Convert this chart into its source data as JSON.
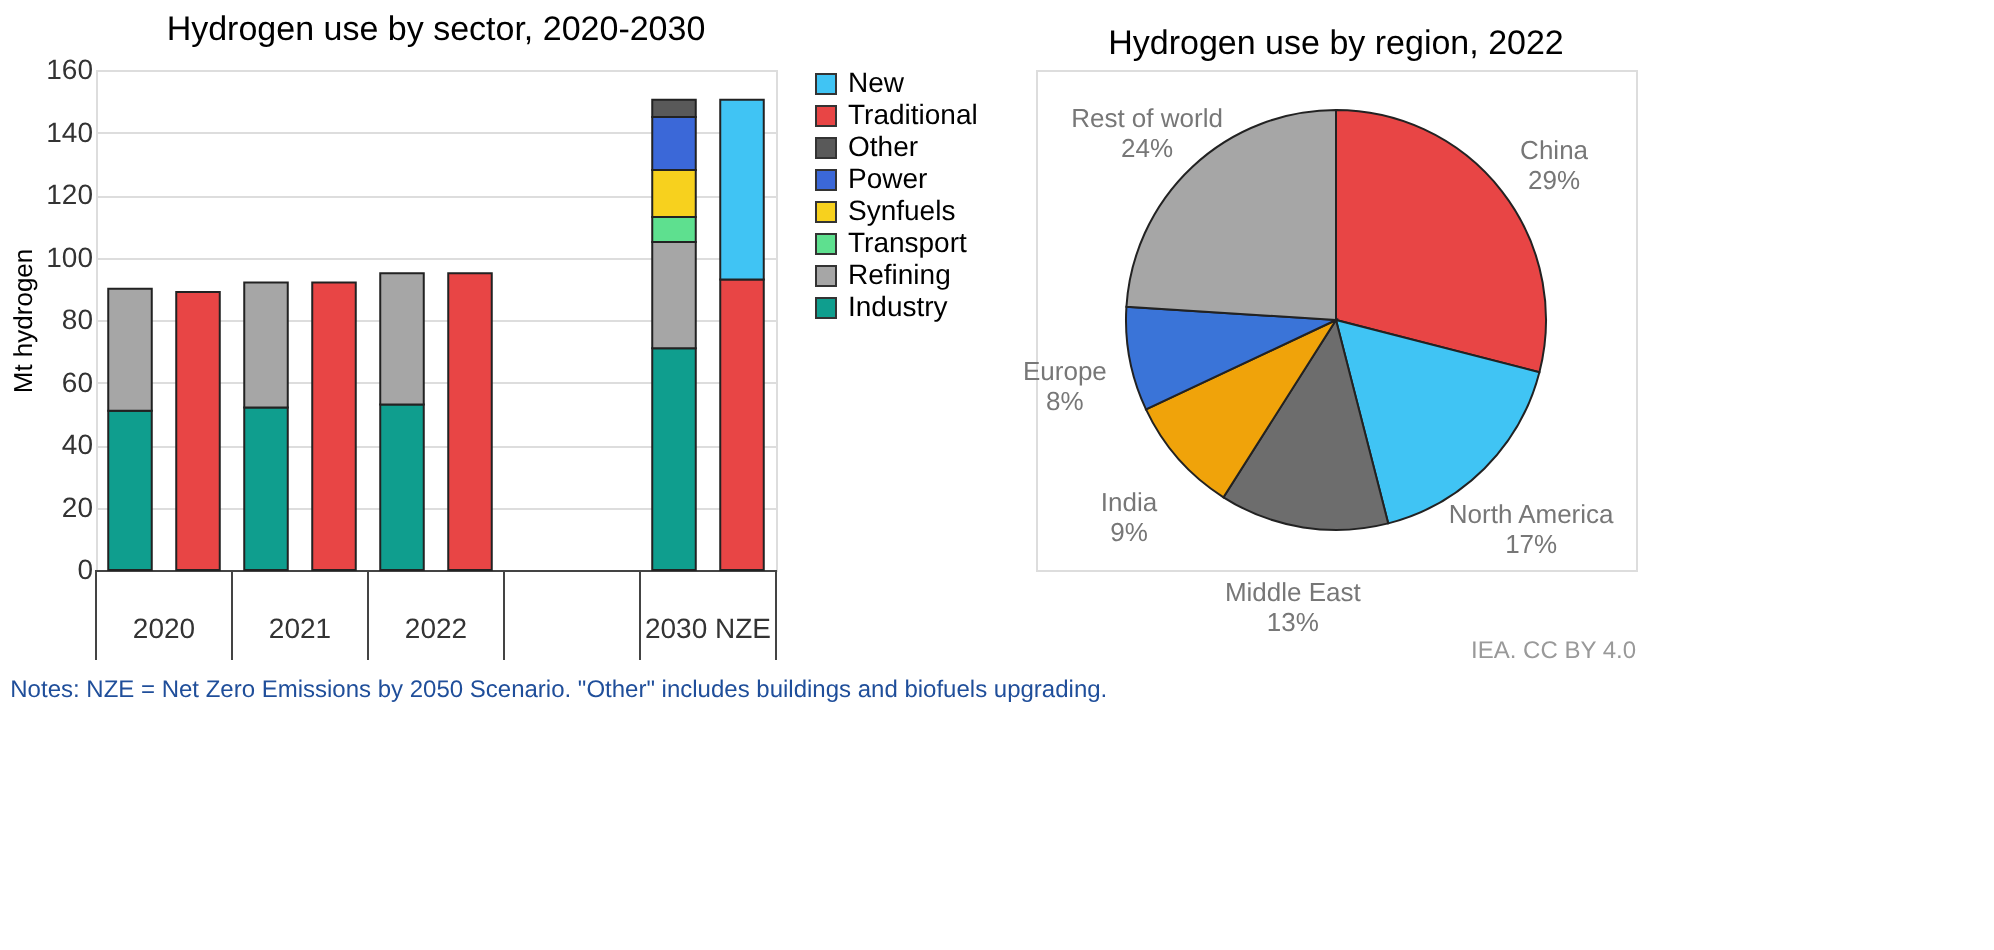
{
  "chart_data": [
    {
      "type": "bar",
      "stacked": true,
      "title": "Hydrogen use by sector, 2020-2030",
      "ylabel": "Mt hydrogen",
      "categories": [
        "2020",
        null,
        "2021",
        null,
        "2022",
        null,
        null,
        null,
        "2030 NZE",
        null
      ],
      "series": [
        {
          "name": "Industry",
          "color": "#0f9e8e",
          "values": [
            51,
            null,
            52,
            null,
            53,
            null,
            null,
            null,
            71,
            null
          ]
        },
        {
          "name": "Refining",
          "color": "#a6a6a6",
          "values": [
            39,
            null,
            40,
            null,
            42,
            null,
            null,
            null,
            34,
            null
          ]
        },
        {
          "name": "Transport",
          "color": "#5ee08f",
          "values": [
            null,
            null,
            null,
            null,
            null,
            null,
            null,
            null,
            8,
            null
          ]
        },
        {
          "name": "Synfuels",
          "color": "#f7d11e",
          "values": [
            null,
            null,
            null,
            null,
            null,
            null,
            null,
            null,
            15,
            null
          ]
        },
        {
          "name": "Power",
          "color": "#3b68d8",
          "values": [
            null,
            null,
            null,
            null,
            null,
            null,
            null,
            null,
            17,
            null
          ]
        },
        {
          "name": "Other",
          "color": "#595959",
          "values": [
            null,
            null,
            null,
            null,
            null,
            null,
            null,
            null,
            5.5,
            null
          ]
        },
        {
          "name": "Traditional",
          "color": "#e84545",
          "values": [
            null,
            89,
            null,
            92,
            null,
            95,
            null,
            null,
            null,
            93
          ]
        },
        {
          "name": "New",
          "color": "#40c4f4",
          "values": [
            null,
            null,
            null,
            null,
            null,
            null,
            null,
            null,
            null,
            57.5
          ]
        }
      ],
      "ylim": [
        0,
        160
      ],
      "yticks": [
        0,
        20,
        40,
        60,
        80,
        100,
        120,
        140,
        160
      ],
      "grid": "y",
      "legend": "right",
      "annotations": [
        "Notes: NZE = Net Zero Emissions by 2050 Scenario. \"Other\" includes buildings and biofuels upgrading."
      ]
    },
    {
      "type": "pie",
      "title": "Hydrogen use by region, 2022",
      "categories": [
        "China",
        "North America",
        "Middle East",
        "India",
        "Europe",
        "Rest of world"
      ],
      "values": [
        29,
        17,
        13,
        9,
        8,
        24
      ],
      "value_labels": [
        "29%",
        "17%",
        "13%",
        "9%",
        "8%",
        "24%"
      ],
      "colors": [
        "#e84545",
        "#40c4f4",
        "#6d6d6d",
        "#f0a30a",
        "#3a74d8",
        "#a6a6a6"
      ],
      "annotations": [
        "IEA. CC BY 4.0"
      ]
    }
  ]
}
